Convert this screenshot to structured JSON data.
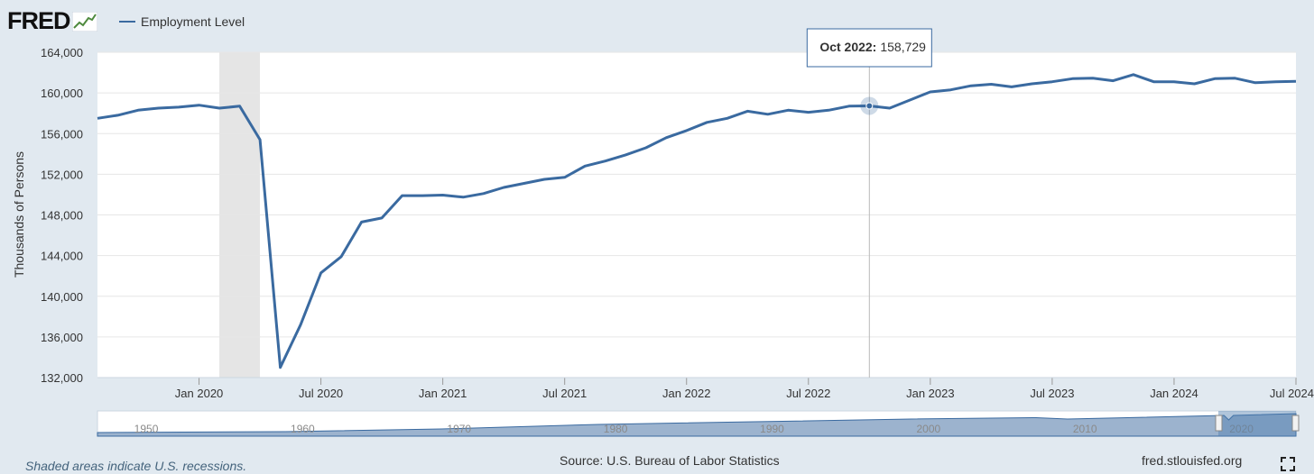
{
  "brand": {
    "logo_text": "FRED"
  },
  "chart_data": {
    "type": "line",
    "series": [
      {
        "name": "Employment Level",
        "color": "#3a6aa0",
        "x": [
          "2019-08",
          "2019-09",
          "2019-10",
          "2019-11",
          "2019-12",
          "2020-01",
          "2020-02",
          "2020-03",
          "2020-04",
          "2020-05",
          "2020-06",
          "2020-07",
          "2020-08",
          "2020-09",
          "2020-10",
          "2020-11",
          "2020-12",
          "2021-01",
          "2021-02",
          "2021-03",
          "2021-04",
          "2021-05",
          "2021-06",
          "2021-07",
          "2021-08",
          "2021-09",
          "2021-10",
          "2021-11",
          "2021-12",
          "2022-01",
          "2022-02",
          "2022-03",
          "2022-04",
          "2022-05",
          "2022-06",
          "2022-07",
          "2022-08",
          "2022-09",
          "2022-10",
          "2022-11",
          "2022-12",
          "2023-01",
          "2023-02",
          "2023-03",
          "2023-04",
          "2023-05",
          "2023-06",
          "2023-07",
          "2023-08",
          "2023-09",
          "2023-10",
          "2023-11",
          "2023-12",
          "2024-01",
          "2024-02",
          "2024-03",
          "2024-04",
          "2024-05",
          "2024-06",
          "2024-07"
        ],
        "y": [
          157500,
          157800,
          158300,
          158500,
          158600,
          158800,
          158500,
          158700,
          155400,
          133000,
          137200,
          142300,
          143900,
          147300,
          147700,
          149900,
          149900,
          149950,
          149750,
          150100,
          150700,
          151100,
          151500,
          151700,
          152800,
          153300,
          153900,
          154600,
          155600,
          156300,
          157100,
          157500,
          158200,
          157900,
          158300,
          158100,
          158300,
          158700,
          158729,
          158500,
          159300,
          160100,
          160300,
          160700,
          160850,
          160600,
          160900,
          161100,
          161400,
          161450,
          161200,
          161800,
          161100,
          161100,
          160900,
          161400,
          161450,
          161000,
          161100,
          161150
        ]
      }
    ],
    "ylabel": "Thousands of Persons",
    "y_ticks": [
      132000,
      136000,
      140000,
      144000,
      148000,
      152000,
      156000,
      160000,
      164000
    ],
    "y_tick_labels": [
      "132,000",
      "136,000",
      "140,000",
      "144,000",
      "148,000",
      "152,000",
      "156,000",
      "160,000",
      "164,000"
    ],
    "ylim": [
      132000,
      164000
    ],
    "xlim": [
      "2019-08",
      "2024-07"
    ],
    "x_ticks": [
      "2020-01",
      "2020-07",
      "2021-01",
      "2021-07",
      "2022-01",
      "2022-07",
      "2023-01",
      "2023-07",
      "2024-01",
      "2024-07"
    ],
    "x_tick_labels": [
      "Jan 2020",
      "Jul 2020",
      "Jan 2021",
      "Jul 2021",
      "Jan 2022",
      "Jul 2022",
      "Jan 2023",
      "Jul 2023",
      "Jan 2024",
      "Jul 2024"
    ],
    "recessions": [
      {
        "start": "2020-02",
        "end": "2020-04"
      }
    ],
    "grid": true,
    "legend": {
      "label": "Employment Level",
      "position": "top-left"
    },
    "tooltip": {
      "date_label": "Oct 2022:",
      "value_label": "158,729",
      "x": "2022-10",
      "y": 158729
    },
    "navigator": {
      "labels": [
        "1950",
        "1960",
        "1970",
        "1980",
        "1990",
        "2000",
        "2010",
        "2020"
      ],
      "years": [
        1950,
        1960,
        1970,
        1980,
        1990,
        2000,
        2010,
        2020
      ],
      "start_year": 1948,
      "end_year": 2024.6
    }
  },
  "footer": {
    "recession_note": "Shaded areas indicate U.S. recessions.",
    "source": "Source: U.S. Bureau of Labor Statistics",
    "site": "fred.stlouisfed.org"
  }
}
